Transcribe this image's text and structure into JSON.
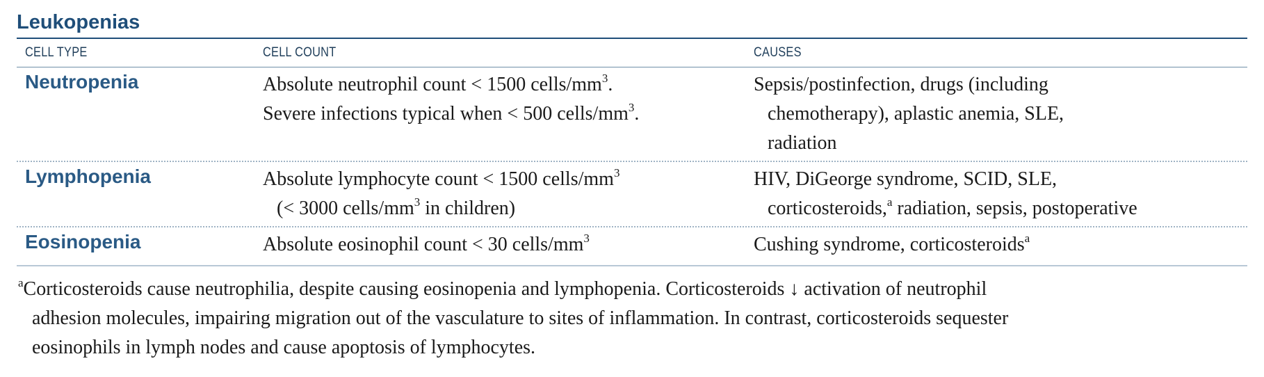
{
  "table": {
    "title": "Leukopenias",
    "headers": [
      "CELL TYPE",
      "CELL COUNT",
      "CAUSES"
    ],
    "rows": [
      {
        "cell_type": "Neutropenia",
        "count_lines": [
          "Absolute neutrophil count < 1500 cells/mm3.",
          "Severe infections typical when < 500 cells/mm3."
        ],
        "cause_lines": [
          "Sepsis/postinfection, drugs (including",
          "chemotherapy), aplastic anemia, SLE,",
          "radiation"
        ]
      },
      {
        "cell_type": "Lymphopenia",
        "count_lines": [
          "Absolute lymphocyte count < 1500 cells/mm3",
          "(< 3000 cells/mm3 in children)"
        ],
        "cause_lines": [
          "HIV, DiGeorge syndrome, SCID, SLE,",
          "corticosteroids,a radiation, sepsis, postoperative"
        ]
      },
      {
        "cell_type": "Eosinopenia",
        "count_lines": [
          "Absolute eosinophil count < 30 cells/mm3"
        ],
        "cause_lines": [
          "Cushing syndrome, corticosteroidsa"
        ]
      }
    ],
    "footnote_lines": [
      "aCorticosteroids cause neutrophilia, despite causing eosinopenia and lymphopenia. Corticosteroids ↓ activation of neutrophil",
      "adhesion molecules, impairing migration out of the vasculature to sites of inflammation. In contrast, corticosteroids sequester",
      "eosinophils in lymph nodes and cause apoptosis of lymphocytes."
    ]
  }
}
